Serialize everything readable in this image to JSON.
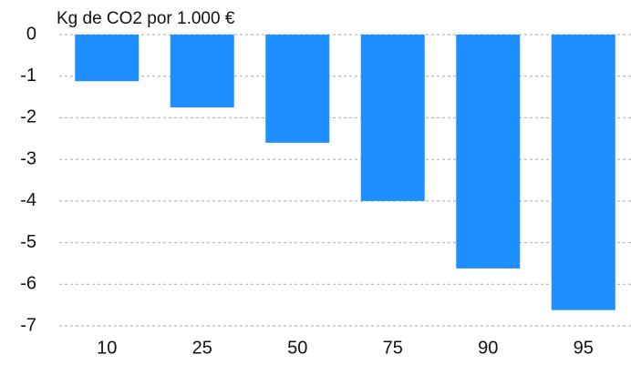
{
  "chart_data": {
    "type": "bar",
    "title": "Kg de CO2 por 1.000 €",
    "categories": [
      "10",
      "25",
      "50",
      "75",
      "90",
      "95"
    ],
    "values": [
      -1.12,
      -1.75,
      -2.6,
      -4.0,
      -5.62,
      -6.62
    ],
    "color": "#1f8fff",
    "ylim": [
      -7,
      0
    ],
    "yticks": [
      0,
      -1,
      -2,
      -3,
      -4,
      -5,
      -6,
      -7
    ],
    "grid": true
  }
}
